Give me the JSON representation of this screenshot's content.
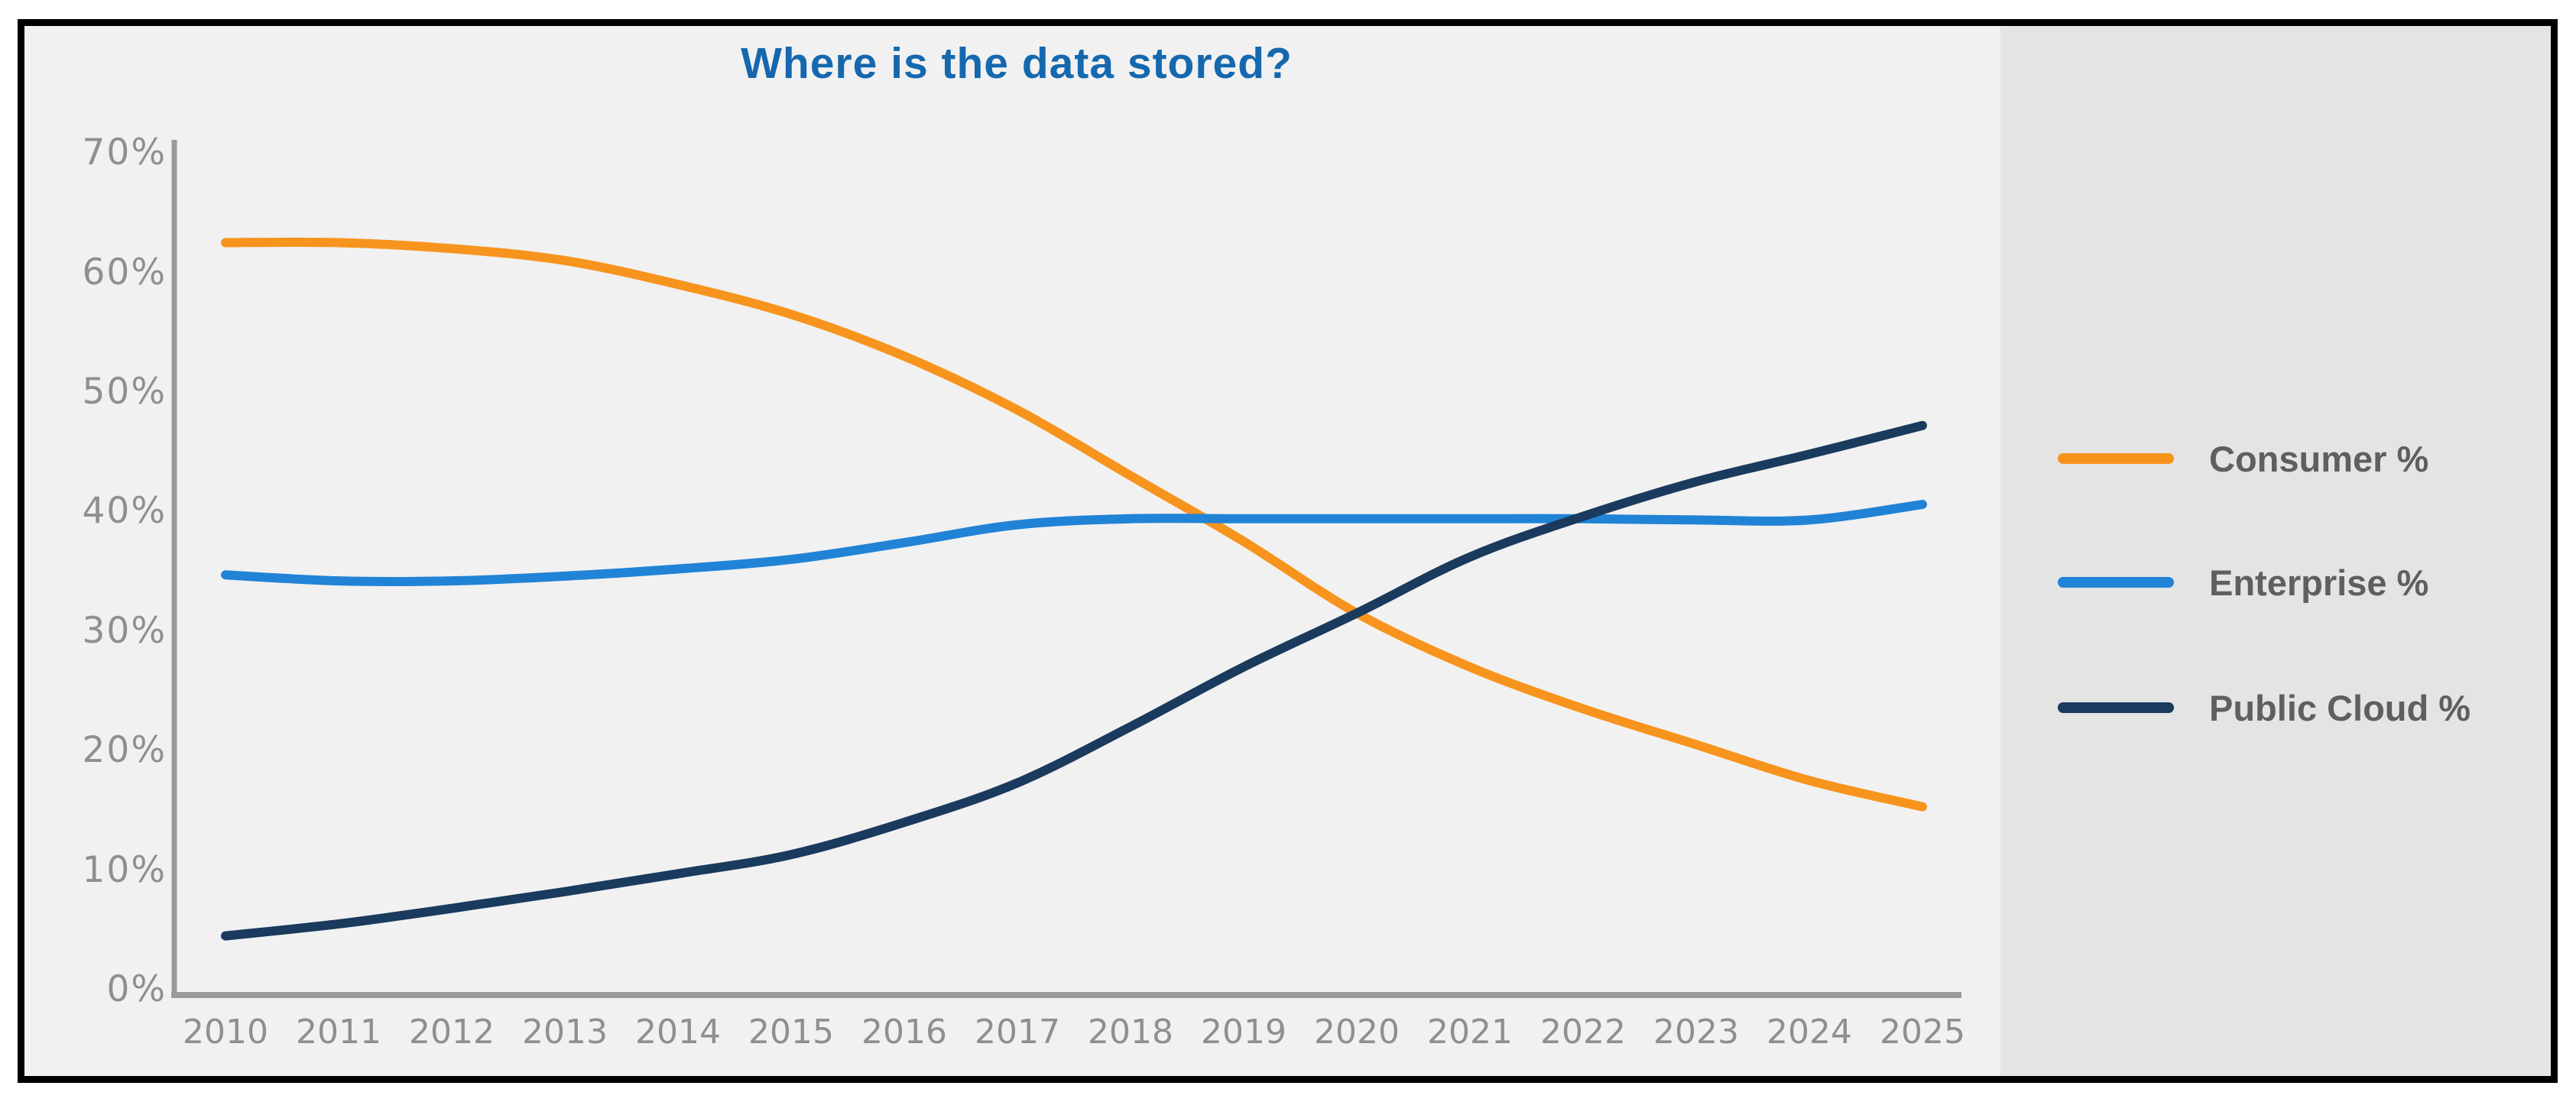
{
  "chart_data": {
    "type": "line",
    "title": "Where is the data stored?",
    "title_color": "#1568ae",
    "xlabel": "",
    "ylabel": "",
    "x": [
      "2010",
      "2011",
      "2012",
      "2013",
      "2014",
      "2015",
      "2016",
      "2017",
      "2018",
      "2019",
      "2020",
      "2021",
      "2022",
      "2023",
      "2024",
      "2025"
    ],
    "series": [
      {
        "name": "Consumer %",
        "color": "#f7941d",
        "values": [
          62.5,
          62.5,
          62.0,
          61.0,
          59.0,
          56.5,
          53.0,
          48.5,
          43.0,
          37.5,
          31.5,
          27.0,
          23.5,
          20.5,
          17.5,
          15.3
        ]
      },
      {
        "name": "Enterprise %",
        "color": "#2183d6",
        "values": [
          34.7,
          34.2,
          34.2,
          34.6,
          35.2,
          36.0,
          37.4,
          38.9,
          39.4,
          39.4,
          39.4,
          39.4,
          39.4,
          39.3,
          39.3,
          40.6
        ]
      },
      {
        "name": "Public Cloud %",
        "color": "#1a3a5e",
        "values": [
          4.5,
          5.5,
          6.8,
          8.2,
          9.7,
          11.3,
          14.0,
          17.3,
          22.0,
          27.0,
          31.5,
          36.2,
          39.6,
          42.5,
          44.8,
          47.2
        ]
      }
    ],
    "ylim": [
      0,
      70
    ],
    "ytick_step": 10,
    "yticks": [
      "0%",
      "10%",
      "20%",
      "30%",
      "40%",
      "50%",
      "60%",
      "70%"
    ],
    "grid": false,
    "legend_position": "right",
    "colors": {
      "plot_background": "#f1f1f1",
      "legend_background": "#e4e4e4",
      "frame_border": "#000000",
      "axis": "#9b9b9b",
      "tick_text": "#8f8f8f",
      "legend_text": "#5f5f5f"
    }
  }
}
